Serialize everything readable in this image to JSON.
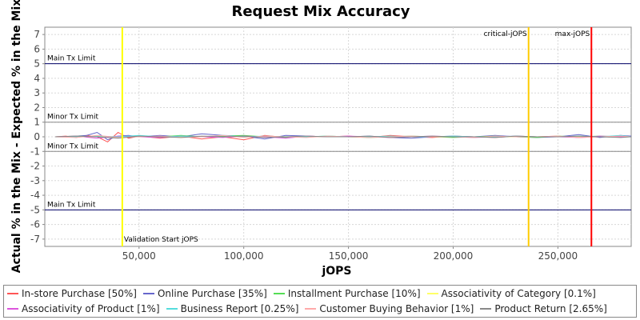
{
  "chart_data": {
    "type": "line",
    "title": "Request Mix Accuracy",
    "xlabel": "jOPS",
    "ylabel": "Actual % in the Mix - Expected % in the Mix",
    "xlim": [
      5000,
      285000
    ],
    "ylim": [
      -7.5,
      7.5
    ],
    "x_ticks": [
      50000,
      100000,
      150000,
      200000,
      250000
    ],
    "x_tick_labels": [
      "50,000",
      "100,000",
      "150,000",
      "200,000",
      "250,000"
    ],
    "y_ticks": [
      7,
      6,
      5,
      4,
      3,
      2,
      1,
      0,
      -1,
      -2,
      -3,
      -4,
      -5,
      -6,
      -7
    ],
    "y_tick_labels": [
      "7",
      "6",
      "5",
      "4",
      "3",
      "2",
      "1",
      "0",
      "-1",
      "-2",
      "-3",
      "-4",
      "-5",
      "-6",
      "-7"
    ],
    "grid": true,
    "limit_lines": [
      {
        "label": "Main Tx Limit",
        "y": 5,
        "color": "#000066",
        "label_side": "above"
      },
      {
        "label": "Minor Tx Limit",
        "y": 1,
        "color": "#888888",
        "label_side": "above"
      },
      {
        "label": "Minor Tx Limit",
        "y": -1,
        "color": "#888888",
        "label_side": "above"
      },
      {
        "label": "Main Tx Limit",
        "y": -5,
        "color": "#000066",
        "label_side": "above"
      }
    ],
    "markers": [
      {
        "label": "Validation Start jOPS",
        "x": 42000,
        "color": "#ffff00"
      },
      {
        "label": "critical-jOPS",
        "x": 236000,
        "color": "#ffcc00"
      },
      {
        "label": "max-jOPS",
        "x": 266000,
        "color": "#ff0000"
      }
    ],
    "legend_position": "bottom",
    "series": [
      {
        "name": "In-store Purchase [50%]",
        "color": "#ff5555",
        "x": [
          10000,
          15000,
          20000,
          25000,
          30000,
          35000,
          40000,
          45000,
          50000,
          60000,
          70000,
          80000,
          90000,
          100000,
          110000,
          120000,
          130000,
          140000,
          150000,
          160000,
          170000,
          180000,
          190000,
          200000,
          210000,
          220000,
          230000,
          240000,
          250000,
          260000,
          270000,
          280000,
          285000
        ],
        "y": [
          0.0,
          0.05,
          -0.05,
          0.1,
          0.0,
          -0.35,
          0.3,
          -0.1,
          0.05,
          -0.1,
          0.05,
          -0.15,
          0.0,
          -0.2,
          0.1,
          -0.05,
          0.05,
          0.0,
          0.05,
          -0.05,
          0.1,
          0.0,
          -0.05,
          0.05,
          0.0,
          -0.05,
          0.05,
          0.0,
          0.05,
          -0.05,
          0.0,
          0.05,
          0.0
        ]
      },
      {
        "name": "Online Purchase [35%]",
        "color": "#6666cc",
        "x": [
          10000,
          15000,
          20000,
          25000,
          30000,
          35000,
          40000,
          45000,
          50000,
          60000,
          70000,
          80000,
          90000,
          100000,
          110000,
          120000,
          130000,
          140000,
          150000,
          160000,
          170000,
          180000,
          190000,
          200000,
          210000,
          220000,
          230000,
          240000,
          250000,
          260000,
          270000,
          280000,
          285000
        ],
        "y": [
          0.0,
          0.0,
          0.05,
          0.1,
          0.3,
          -0.2,
          0.05,
          0.1,
          0.0,
          0.1,
          0.0,
          0.2,
          0.1,
          0.05,
          -0.15,
          0.1,
          0.05,
          0.0,
          0.0,
          0.05,
          -0.05,
          -0.1,
          0.0,
          0.05,
          0.0,
          0.1,
          0.0,
          -0.05,
          0.0,
          0.15,
          -0.05,
          0.1,
          0.05
        ]
      },
      {
        "name": "Installment Purchase [10%]",
        "color": "#55dd55",
        "x": [
          10000,
          20000,
          30000,
          40000,
          50000,
          60000,
          70000,
          80000,
          90000,
          100000,
          110000,
          120000,
          130000,
          140000,
          150000,
          160000,
          170000,
          180000,
          190000,
          200000,
          210000,
          220000,
          230000,
          240000,
          250000,
          260000,
          270000,
          280000,
          285000
        ],
        "y": [
          0.0,
          0.05,
          0.0,
          -0.05,
          0.05,
          0.0,
          0.1,
          0.0,
          0.05,
          0.1,
          0.0,
          -0.05,
          0.0,
          0.05,
          0.0,
          -0.05,
          0.0,
          0.05,
          0.0,
          -0.05,
          0.0,
          0.05,
          0.0,
          -0.05,
          0.05,
          0.0,
          0.05,
          0.0,
          0.0
        ]
      },
      {
        "name": "Associativity of Category [0.1%]",
        "color": "#ffff66",
        "x": [
          10000,
          285000
        ],
        "y": [
          0.0,
          0.0
        ]
      },
      {
        "name": "Associativity of Product [1%]",
        "color": "#dd55dd",
        "x": [
          10000,
          20000,
          30000,
          40000,
          50000,
          60000,
          70000,
          80000,
          90000,
          100000,
          110000,
          120000,
          130000,
          140000,
          150000,
          160000,
          170000,
          180000,
          190000,
          200000,
          210000,
          220000,
          230000,
          240000,
          250000,
          260000,
          270000,
          280000,
          285000
        ],
        "y": [
          0.0,
          0.05,
          -0.1,
          0.05,
          0.0,
          -0.05,
          0.05,
          0.0,
          -0.05,
          0.05,
          0.0,
          -0.1,
          0.05,
          0.0,
          0.05,
          0.0,
          -0.05,
          0.0,
          0.05,
          0.0,
          -0.05,
          0.0,
          0.05,
          0.0,
          0.0,
          -0.05,
          0.05,
          0.0,
          0.0
        ]
      },
      {
        "name": "Business Report [0.25%]",
        "color": "#55dddd",
        "x": [
          10000,
          20000,
          30000,
          40000,
          50000,
          60000,
          70000,
          80000,
          90000,
          100000,
          110000,
          120000,
          130000,
          140000,
          150000,
          160000,
          170000,
          180000,
          190000,
          200000,
          210000,
          220000,
          230000,
          240000,
          250000,
          260000,
          270000,
          280000,
          285000
        ],
        "y": [
          0.0,
          0.0,
          0.05,
          0.0,
          0.1,
          0.0,
          0.05,
          0.0,
          0.1,
          0.0,
          0.05,
          0.0,
          0.0,
          0.05,
          0.0,
          0.0,
          0.05,
          0.0,
          0.0,
          0.05,
          0.0,
          0.0,
          0.05,
          0.0,
          0.0,
          0.05,
          0.0,
          0.1,
          0.0
        ]
      },
      {
        "name": "Customer Buying Behavior [1%]",
        "color": "#ffaaaa",
        "x": [
          10000,
          20000,
          30000,
          40000,
          50000,
          60000,
          70000,
          80000,
          90000,
          100000,
          110000,
          120000,
          130000,
          140000,
          150000,
          160000,
          170000,
          180000,
          190000,
          200000,
          210000,
          220000,
          230000,
          240000,
          250000,
          260000,
          270000,
          280000,
          285000
        ],
        "y": [
          0.0,
          -0.05,
          0.1,
          -0.05,
          0.0,
          0.05,
          -0.05,
          0.0,
          0.1,
          -0.05,
          0.05,
          0.0,
          -0.05,
          0.05,
          0.0,
          -0.05,
          0.0,
          0.05,
          0.0,
          0.0,
          -0.05,
          0.05,
          0.0,
          0.0,
          0.05,
          -0.05,
          0.0,
          0.05,
          0.0
        ]
      },
      {
        "name": "Product Return [2.65%]",
        "color": "#888888",
        "x": [
          10000,
          20000,
          30000,
          40000,
          50000,
          60000,
          70000,
          80000,
          90000,
          100000,
          110000,
          120000,
          130000,
          140000,
          150000,
          160000,
          170000,
          180000,
          190000,
          200000,
          210000,
          220000,
          230000,
          240000,
          250000,
          260000,
          270000,
          280000,
          285000
        ],
        "y": [
          0.0,
          0.05,
          0.0,
          -0.1,
          0.05,
          0.0,
          -0.05,
          0.05,
          0.0,
          0.05,
          -0.05,
          0.0,
          0.05,
          0.0,
          0.0,
          0.05,
          -0.05,
          0.0,
          0.05,
          0.0,
          0.0,
          -0.05,
          0.05,
          0.0,
          0.0,
          0.05,
          0.0,
          -0.05,
          0.0
        ]
      }
    ]
  }
}
